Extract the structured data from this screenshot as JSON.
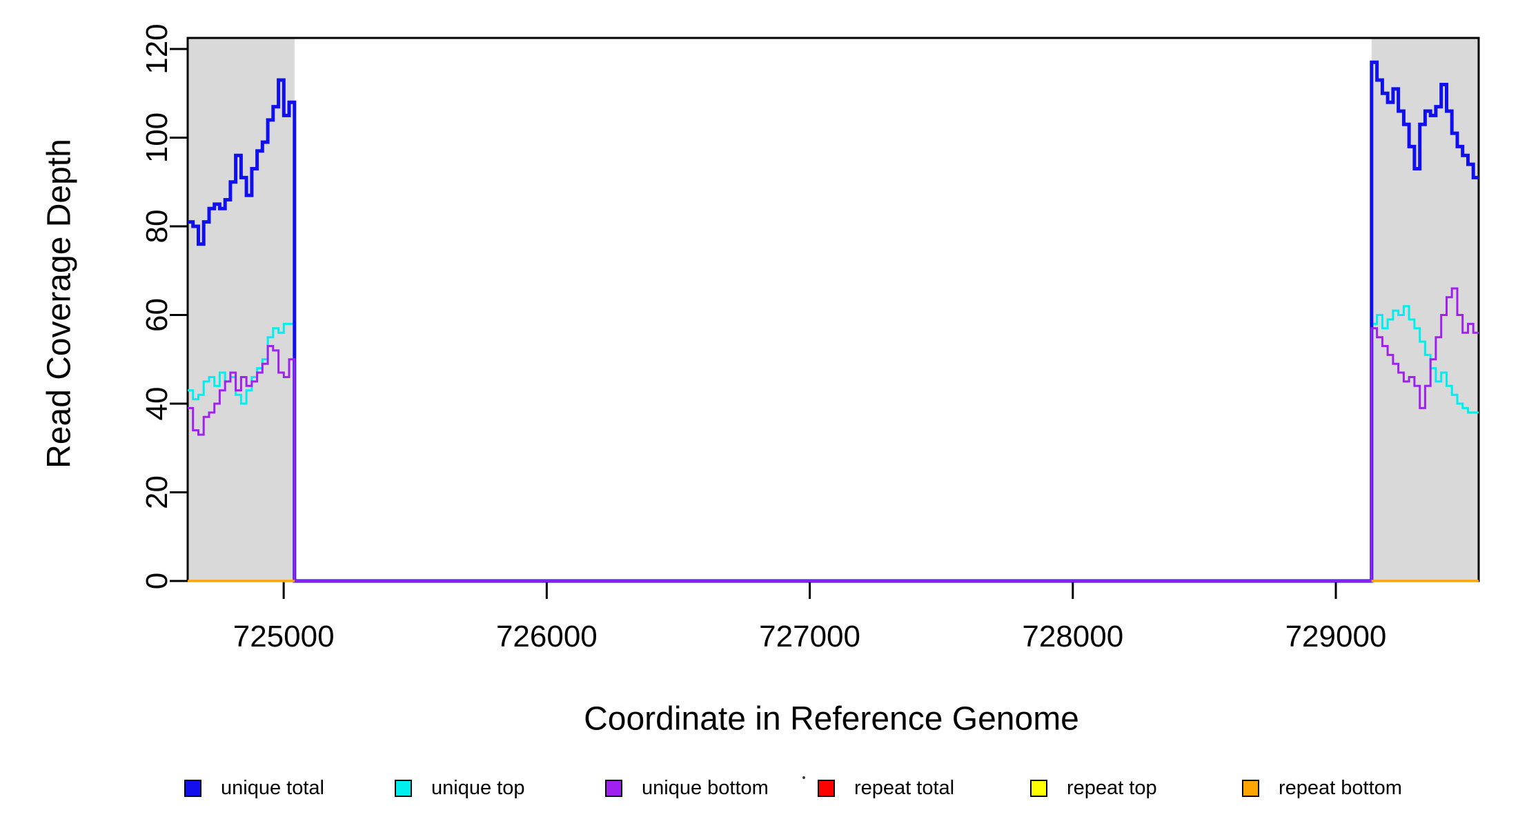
{
  "chart_data": {
    "type": "line",
    "subtype": "step-coverage",
    "title": "",
    "xlabel": "Coordinate in Reference Genome",
    "ylabel": "Read Coverage Depth",
    "x_range": [
      724635,
      729543
    ],
    "y_range": [
      0,
      122.5
    ],
    "grid": "off",
    "background": "#FFFFFF",
    "axis_color": "#000000",
    "region_color": "#D9D9D9",
    "x_ticks": {
      "values": [
        725000,
        726000,
        727000,
        728000,
        729000
      ],
      "labels": [
        "725000",
        "726000",
        "727000",
        "728000",
        "729000"
      ]
    },
    "y_ticks": {
      "values": [
        0,
        20,
        40,
        60,
        80,
        100,
        120
      ],
      "labels": [
        "0",
        "20",
        "40",
        "60",
        "80",
        "100",
        "120"
      ]
    },
    "shaded_regions": [
      {
        "from": 724635,
        "to": 725041
      },
      {
        "from": 729136,
        "to": 729543
      }
    ],
    "series": [
      {
        "name": "unique top",
        "color": "#00EEEE",
        "line_width": 3,
        "steps": [
          {
            "from": 724635,
            "to": 725041,
            "values": [
              43,
              41,
              42,
              45,
              46,
              44,
              47,
              45,
              46,
              42,
              40,
              43,
              46,
              48,
              50,
              55,
              57,
              56,
              58,
              58
            ]
          },
          {
            "from": 725041,
            "to": 729136,
            "values": [
              0
            ]
          },
          {
            "from": 729136,
            "to": 729543,
            "values": [
              58,
              60,
              57,
              59,
              61,
              60,
              62,
              59,
              57,
              54,
              51,
              48,
              45,
              47,
              44,
              42,
              40,
              39,
              38,
              38
            ]
          }
        ]
      },
      {
        "name": "unique total",
        "color": "#1010EE",
        "line_width": 5,
        "steps": [
          {
            "from": 724635,
            "to": 725041,
            "values": [
              81,
              80,
              76,
              81,
              84,
              85,
              84,
              86,
              90,
              96,
              91,
              87,
              93,
              97,
              99,
              104,
              107,
              113,
              105,
              108
            ]
          },
          {
            "from": 725041,
            "to": 729136,
            "values": [
              0
            ]
          },
          {
            "from": 729136,
            "to": 729543,
            "values": [
              117,
              113,
              110,
              108,
              111,
              106,
              103,
              98,
              93,
              103,
              106,
              105,
              107,
              112,
              106,
              101,
              98,
              96,
              94,
              91
            ]
          }
        ]
      },
      {
        "name": "unique bottom",
        "color": "#A020F0",
        "line_width": 3,
        "steps": [
          {
            "from": 724635,
            "to": 725041,
            "values": [
              39,
              34,
              33,
              37,
              38,
              40,
              43,
              45,
              47,
              43,
              46,
              44,
              45,
              47,
              49,
              53,
              52,
              47,
              46,
              50
            ]
          },
          {
            "from": 725041,
            "to": 729136,
            "values": [
              0
            ]
          },
          {
            "from": 729136,
            "to": 729543,
            "values": [
              57,
              55,
              53,
              51,
              49,
              47,
              45,
              46,
              44,
              39,
              44,
              50,
              55,
              60,
              64,
              66,
              60,
              56,
              58,
              56
            ]
          }
        ]
      },
      {
        "name": "repeat total",
        "color": "#FF0000",
        "line_width": 3,
        "steps": [
          {
            "from": 724635,
            "to": 725041,
            "values": [
              0
            ]
          },
          {
            "from": 729136,
            "to": 729543,
            "values": [
              0
            ]
          }
        ]
      },
      {
        "name": "repeat top",
        "color": "#FFFF00",
        "line_width": 3,
        "steps": [
          {
            "from": 724635,
            "to": 725041,
            "values": [
              0
            ]
          },
          {
            "from": 729136,
            "to": 729543,
            "values": [
              0
            ]
          }
        ]
      },
      {
        "name": "repeat bottom",
        "color": "#FFA500",
        "line_width": 3.5,
        "steps": [
          {
            "from": 724635,
            "to": 725041,
            "values": [
              0
            ]
          },
          {
            "from": 729136,
            "to": 729543,
            "values": [
              0
            ]
          }
        ]
      }
    ],
    "legend": {
      "position": "bottom",
      "entries": [
        {
          "label": "unique total",
          "color": "#1010EE"
        },
        {
          "label": "unique top",
          "color": "#00EEEE"
        },
        {
          "label": "unique bottom",
          "color": "#A020F0"
        },
        {
          "label": "repeat total",
          "color": "#FF0000"
        },
        {
          "label": "repeat top",
          "color": "#FFFF00"
        },
        {
          "label": "repeat bottom",
          "color": "#FFA500"
        }
      ]
    }
  }
}
